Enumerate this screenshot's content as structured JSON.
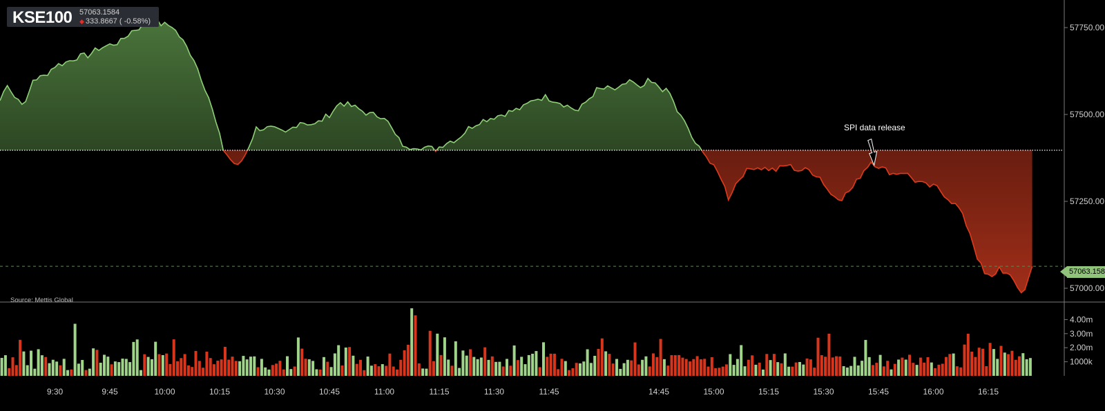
{
  "header": {
    "symbol": "KSE100",
    "last_value": "57063.1584",
    "change_text": "333.8667 ( -0.58%)",
    "direction": "down",
    "down_color": "#e0302a"
  },
  "source_label": "Source: Mettis Global",
  "last_price_label": "57063.158",
  "colors": {
    "up_line": "#8fcf78",
    "down_line": "#e03a1c",
    "up_volume": "#9fd48a",
    "down_volume": "#d8361c",
    "background": "#000000"
  },
  "chart_data": [
    {
      "type": "area",
      "name": "KSE100",
      "baseline_prev_close": 57397,
      "last": 57063.1584,
      "ylim": [
        56985,
        57800
      ],
      "y_ticks": [
        57000,
        57250,
        57500,
        57750
      ],
      "y_tick_labels": [
        "57000.00",
        "57250.00",
        "57500.00",
        "57750.00"
      ],
      "x_ticks": [
        "9:30",
        "9:45",
        "10:00",
        "10:15",
        "10:30",
        "10:45",
        "11:00",
        "11:15",
        "11:30",
        "11:45",
        "14:45",
        "15:00",
        "15:15",
        "15:30",
        "15:45",
        "16:00",
        "16:15"
      ],
      "x_tick_index": [
        15,
        30,
        45,
        60,
        75,
        90,
        105,
        120,
        135,
        150,
        180,
        195,
        210,
        225,
        240,
        255,
        270
      ],
      "n_points": 282,
      "keypoints": [
        [
          0,
          57540
        ],
        [
          2,
          57590
        ],
        [
          4,
          57550
        ],
        [
          7,
          57530
        ],
        [
          9,
          57600
        ],
        [
          12,
          57610
        ],
        [
          15,
          57640
        ],
        [
          18,
          57650
        ],
        [
          21,
          57665
        ],
        [
          24,
          57670
        ],
        [
          27,
          57690
        ],
        [
          30,
          57700
        ],
        [
          33,
          57710
        ],
        [
          36,
          57740
        ],
        [
          39,
          57755
        ],
        [
          42,
          57770
        ],
        [
          44,
          57760
        ],
        [
          47,
          57755
        ],
        [
          50,
          57710
        ],
        [
          53,
          57660
        ],
        [
          57,
          57550
        ],
        [
          61,
          57400
        ],
        [
          63,
          57370
        ],
        [
          65,
          57350
        ],
        [
          67,
          57385
        ],
        [
          70,
          57460
        ],
        [
          74,
          57460
        ],
        [
          78,
          57445
        ],
        [
          82,
          57480
        ],
        [
          86,
          57470
        ],
        [
          90,
          57500
        ],
        [
          93,
          57535
        ],
        [
          97,
          57520
        ],
        [
          101,
          57500
        ],
        [
          105,
          57495
        ],
        [
          108,
          57440
        ],
        [
          111,
          57400
        ],
        [
          113,
          57410
        ],
        [
          116,
          57405
        ],
        [
          119,
          57400
        ],
        [
          122,
          57420
        ],
        [
          125,
          57430
        ],
        [
          128,
          57460
        ],
        [
          131,
          57480
        ],
        [
          134,
          57490
        ],
        [
          137,
          57500
        ],
        [
          140,
          57510
        ],
        [
          143,
          57520
        ],
        [
          146,
          57545
        ],
        [
          149,
          57550
        ],
        [
          152,
          57540
        ],
        [
          155,
          57525
        ],
        [
          158,
          57510
        ],
        [
          160,
          57535
        ],
        [
          163,
          57570
        ],
        [
          166,
          57575
        ],
        [
          169,
          57570
        ],
        [
          172,
          57600
        ],
        [
          175,
          57570
        ],
        [
          177,
          57595
        ],
        [
          180,
          57580
        ],
        [
          183,
          57560
        ],
        [
          185,
          57510
        ],
        [
          188,
          57460
        ],
        [
          190,
          57410
        ],
        [
          192,
          57400
        ],
        [
          194,
          57360
        ],
        [
          197,
          57320
        ],
        [
          199,
          57260
        ],
        [
          201,
          57300
        ],
        [
          203,
          57330
        ],
        [
          206,
          57350
        ],
        [
          209,
          57345
        ],
        [
          212,
          57340
        ],
        [
          215,
          57355
        ],
        [
          218,
          57340
        ],
        [
          221,
          57340
        ],
        [
          224,
          57320
        ],
        [
          227,
          57270
        ],
        [
          230,
          57260
        ],
        [
          233,
          57290
        ],
        [
          236,
          57340
        ],
        [
          238,
          57365
        ],
        [
          241,
          57345
        ],
        [
          244,
          57330
        ],
        [
          247,
          57335
        ],
        [
          250,
          57310
        ],
        [
          253,
          57295
        ],
        [
          256,
          57290
        ],
        [
          259,
          57260
        ],
        [
          262,
          57230
        ],
        [
          265,
          57160
        ],
        [
          267,
          57090
        ],
        [
          269,
          57040
        ],
        [
          271,
          57030
        ],
        [
          273,
          57060
        ],
        [
          275,
          57040
        ],
        [
          277,
          57020
        ],
        [
          279,
          56990
        ],
        [
          280,
          56995
        ],
        [
          282,
          57063
        ]
      ],
      "annotation": {
        "index": 239,
        "text": "SPI data release"
      }
    },
    {
      "type": "bar",
      "name": "Volume",
      "ylim": [
        0,
        5000000
      ],
      "y_ticks": [
        1000000,
        2000000,
        3000000,
        4000000
      ],
      "y_tick_labels": [
        "1000k",
        "2.00m",
        "3.00m",
        "4.00m"
      ],
      "note": "per-minute volume bars colored by price direction",
      "peaks": [
        [
          20,
          3700000
        ],
        [
          112,
          4800000
        ],
        [
          113,
          4300000
        ],
        [
          119,
          3000000
        ],
        [
          117,
          3200000
        ]
      ]
    }
  ]
}
